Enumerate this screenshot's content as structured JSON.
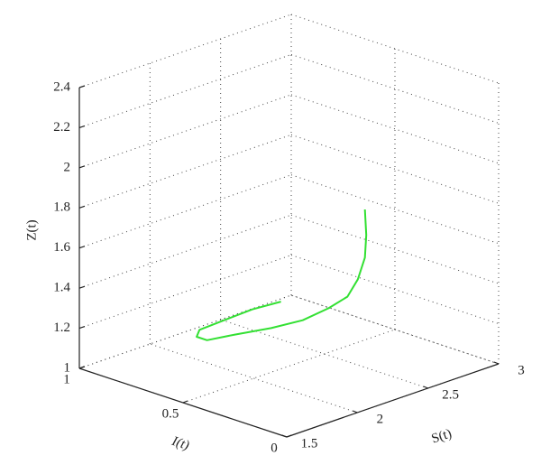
{
  "chart_data": {
    "type": "line3d",
    "xlabel": "S(t)",
    "ylabel": "I(t)",
    "zlabel": "Z(t)",
    "xlim": [
      1.5,
      3
    ],
    "xticks": [
      1.5,
      2,
      2.5,
      3
    ],
    "ylim": [
      0,
      1
    ],
    "yticks": [
      0,
      0.5,
      1
    ],
    "zlim": [
      1,
      2.4
    ],
    "zticks": [
      1,
      1.2,
      1.4,
      1.6,
      1.8,
      2,
      2.2,
      2.4
    ],
    "grid": true,
    "color": "#33e033",
    "x": [
      2.2,
      2.21,
      2.2,
      2.18,
      2.15,
      2.09,
      1.98,
      1.83,
      1.72,
      1.67,
      1.67,
      1.69,
      1.77,
      1.96,
      2.12
    ],
    "y": [
      0.1,
      0.1,
      0.1,
      0.12,
      0.15,
      0.2,
      0.25,
      0.3,
      0.4,
      0.5,
      0.55,
      0.55,
      0.5,
      0.48,
      0.45
    ],
    "z": [
      1.93,
      1.8,
      1.69,
      1.58,
      1.49,
      1.43,
      1.38,
      1.36,
      1.32,
      1.27,
      1.27,
      1.3,
      1.34,
      1.36,
      1.37
    ]
  }
}
